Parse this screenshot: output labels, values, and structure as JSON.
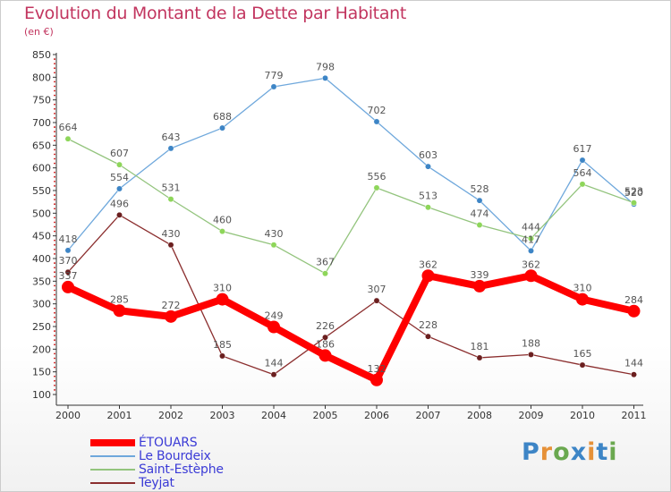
{
  "header": {
    "title": "Evolution du Montant de la Dette par Habitant",
    "subtitle": "(en €)"
  },
  "chart_data": {
    "type": "line",
    "title": "Evolution du Montant de la Dette par Habitant",
    "ylabel": "(en €)",
    "xlabel": "",
    "categories": [
      "2000",
      "2001",
      "2002",
      "2003",
      "2004",
      "2005",
      "2006",
      "2007",
      "2008",
      "2009",
      "2010",
      "2011"
    ],
    "ylim": [
      100,
      850
    ],
    "yticks": [
      100,
      150,
      200,
      250,
      300,
      350,
      400,
      450,
      500,
      550,
      600,
      650,
      700,
      750,
      800,
      850
    ],
    "grid": false,
    "legend_position": "bottom-left",
    "series": [
      {
        "name": "ÉTOUARS",
        "color": "#ff0000",
        "marker_color": "#ff0000",
        "values": [
          337,
          285,
          272,
          310,
          249,
          186,
          132,
          362,
          339,
          362,
          310,
          284
        ]
      },
      {
        "name": "Le Bourdeix",
        "color": "#6fa8dc",
        "marker_color": "#3d85c6",
        "values": [
          418,
          554,
          643,
          688,
          779,
          798,
          702,
          603,
          528,
          417,
          617,
          520
        ]
      },
      {
        "name": "Saint-Estèphe",
        "color": "#93c47d",
        "marker_color": "#8ed65a",
        "values": [
          664,
          607,
          531,
          460,
          430,
          367,
          556,
          513,
          474,
          444,
          564,
          523
        ]
      },
      {
        "name": "Teyjat",
        "color": "#8b2e2e",
        "marker_color": "#6b1f1f",
        "values": [
          370,
          496,
          430,
          185,
          144,
          226,
          307,
          228,
          181,
          188,
          165,
          144
        ]
      }
    ]
  },
  "legend": {
    "items": [
      "ÉTOUARS",
      "Le Bourdeix",
      "Saint-Estèphe",
      "Teyjat"
    ]
  },
  "logo": {
    "text": "Proxiti",
    "colors": [
      "#3d85c6",
      "#e69138",
      "#6aa84f",
      "#3d85c6",
      "#e69138",
      "#3d85c6",
      "#6aa84f"
    ]
  }
}
